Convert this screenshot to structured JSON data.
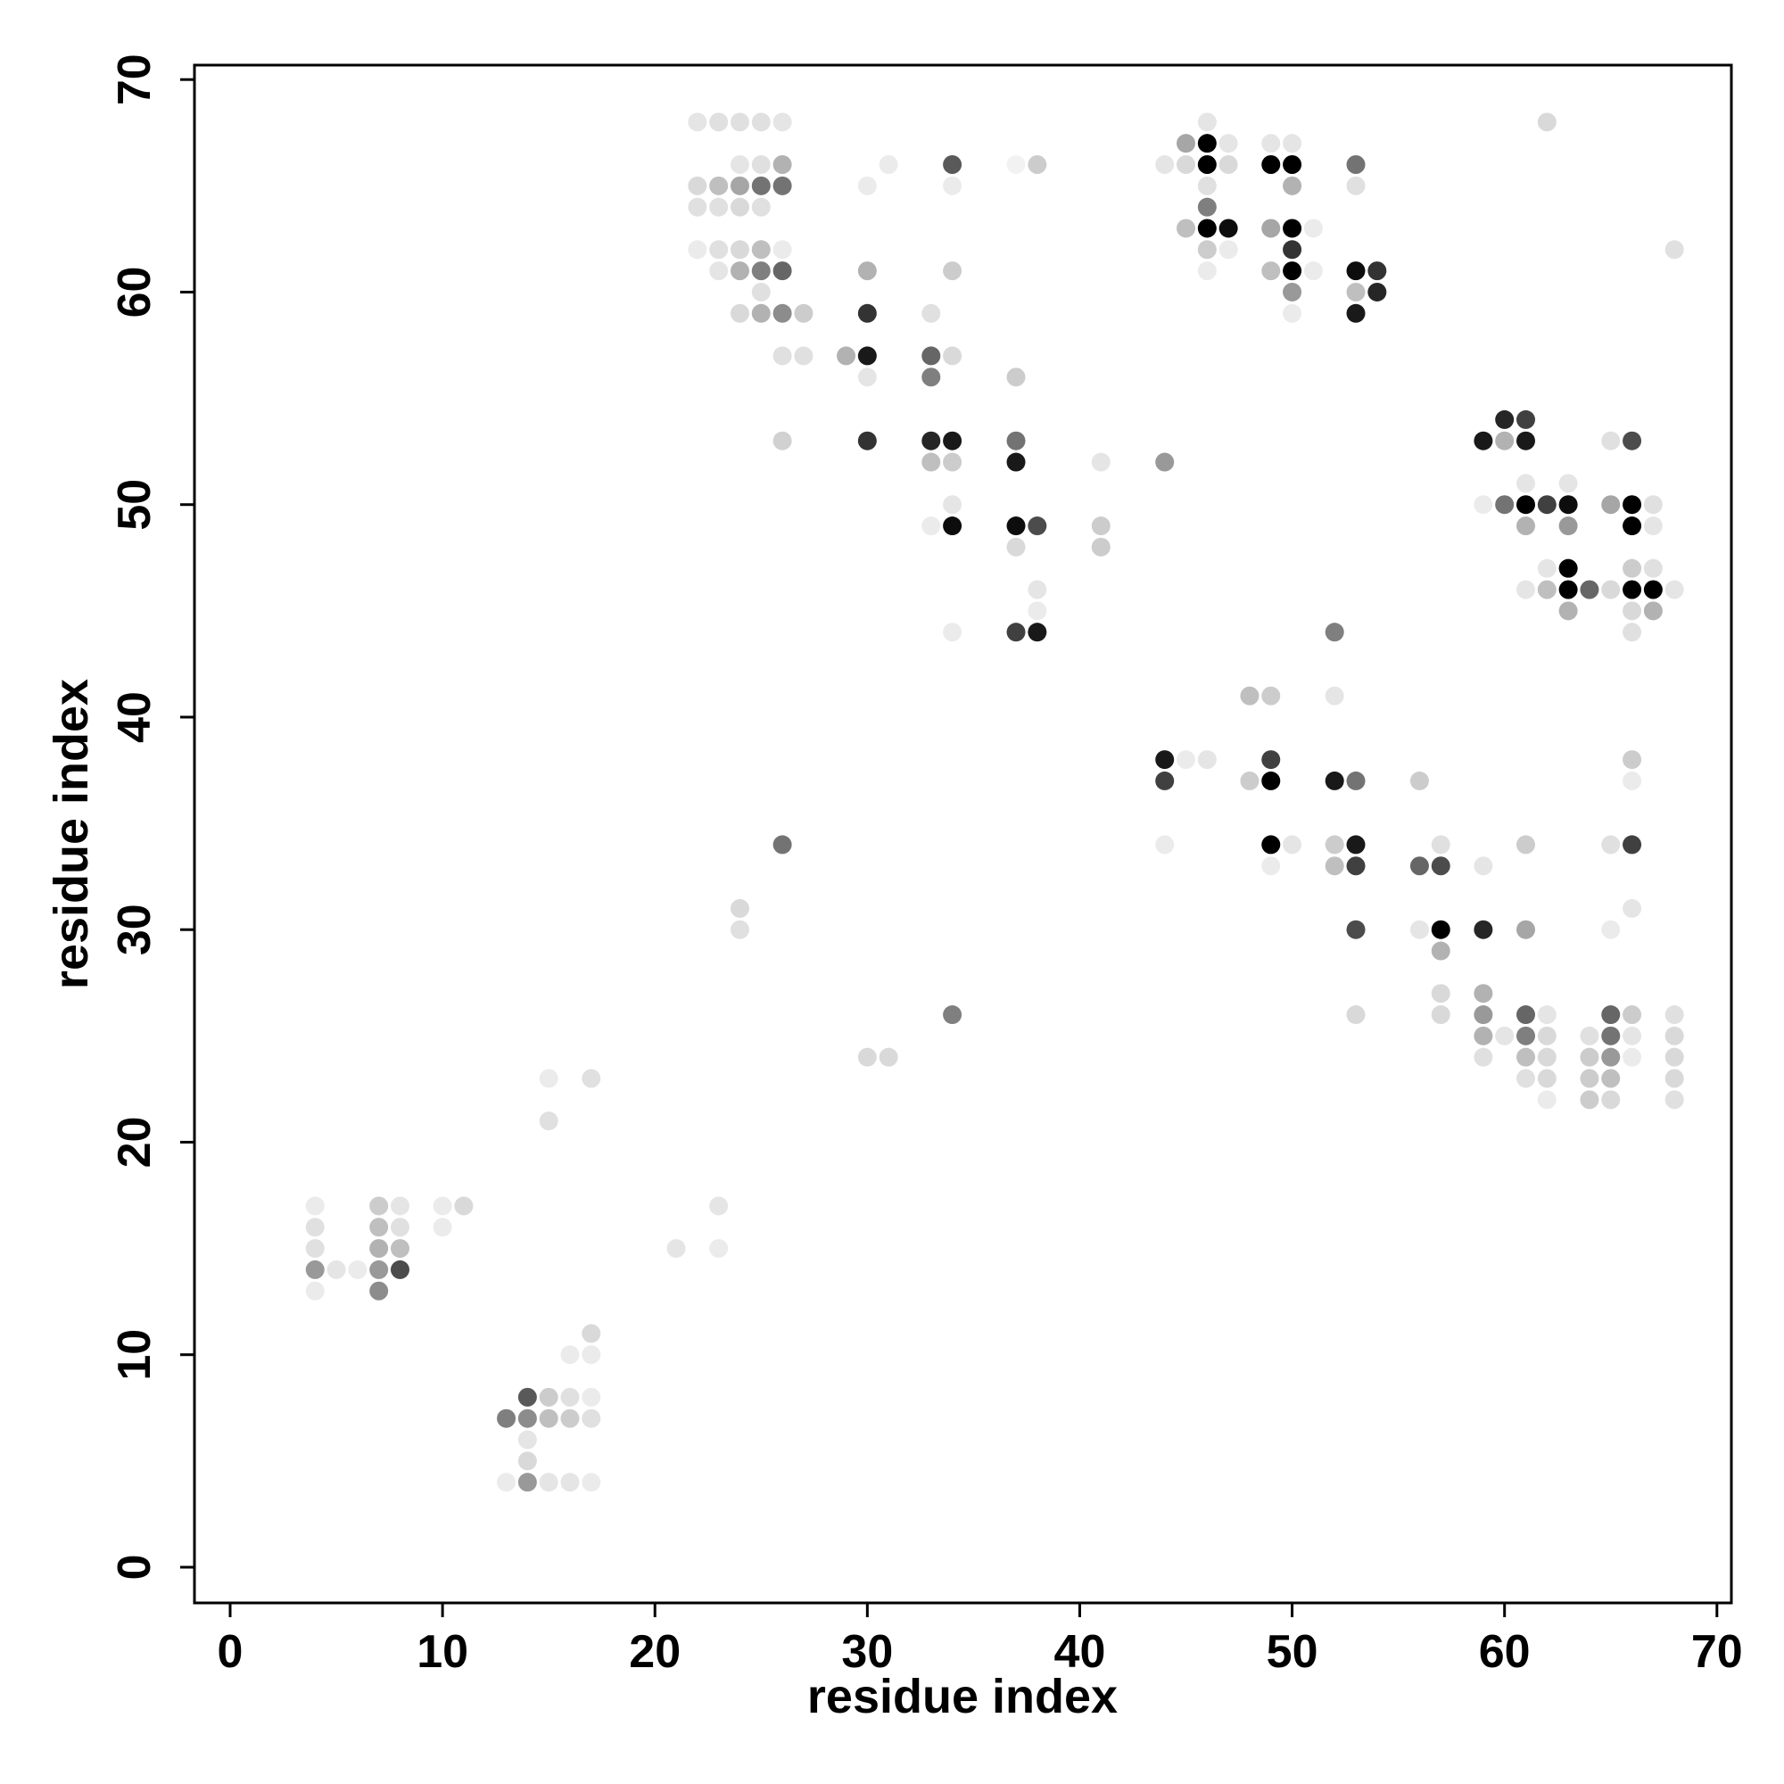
{
  "chart_data": {
    "type": "scatter",
    "x_label": "residue index",
    "y_label": "residue index",
    "xlim": [
      -1.68,
      70.68
    ],
    "ylim": [
      -1.68,
      70.68
    ],
    "xticks": [
      0,
      10,
      20,
      30,
      40,
      50,
      60,
      70
    ],
    "yticks": [
      0,
      10,
      20,
      30,
      40,
      50,
      60,
      70
    ],
    "color": "#000000",
    "x": [
      4,
      4,
      4,
      4,
      4,
      5,
      6,
      7,
      7,
      7,
      7,
      7,
      8,
      8,
      8,
      8,
      10,
      10,
      11,
      13,
      13,
      14,
      14,
      14,
      14,
      14,
      15,
      15,
      15,
      15,
      15,
      16,
      16,
      16,
      16,
      17,
      17,
      17,
      17,
      17,
      17,
      21,
      22,
      22,
      22,
      22,
      23,
      23,
      23,
      23,
      23,
      23,
      23,
      24,
      24,
      24,
      24,
      24,
      24,
      24,
      24,
      24,
      25,
      25,
      25,
      25,
      25,
      25,
      25,
      25,
      26,
      26,
      26,
      26,
      26,
      26,
      26,
      26,
      26,
      27,
      27,
      29,
      30,
      30,
      30,
      30,
      30,
      30,
      30,
      31,
      31,
      33,
      33,
      33,
      33,
      33,
      33,
      34,
      34,
      34,
      34,
      34,
      34,
      34,
      34,
      34,
      34,
      37,
      37,
      37,
      37,
      37,
      37,
      37,
      38,
      38,
      38,
      38,
      38,
      41,
      41,
      41,
      44,
      44,
      44,
      44,
      44,
      45,
      45,
      45,
      45,
      46,
      46,
      46,
      46,
      46,
      46,
      46,
      46,
      46,
      47,
      47,
      47,
      47,
      48,
      48,
      49,
      49,
      49,
      49,
      49,
      49,
      49,
      49,
      49,
      50,
      50,
      50,
      50,
      50,
      50,
      50,
      50,
      50,
      51,
      51,
      52,
      52,
      52,
      52,
      52,
      53,
      53,
      53,
      53,
      53,
      53,
      53,
      53,
      53,
      53,
      54,
      54,
      56,
      56,
      56,
      57,
      57,
      57,
      57,
      57,
      57,
      59,
      59,
      59,
      59,
      59,
      59,
      59,
      59,
      60,
      60,
      60,
      60,
      61,
      61,
      61,
      61,
      61,
      61,
      61,
      61,
      61,
      61,
      61,
      61,
      62,
      62,
      62,
      62,
      62,
      62,
      62,
      62,
      62,
      63,
      63,
      63,
      63,
      63,
      63,
      64,
      64,
      64,
      64,
      64,
      65,
      65,
      65,
      65,
      65,
      65,
      65,
      65,
      65,
      65,
      66,
      66,
      66,
      66,
      66,
      66,
      66,
      66,
      66,
      66,
      66,
      66,
      66,
      66,
      67,
      67,
      67,
      67,
      67,
      68,
      68,
      68,
      68,
      68,
      68,
      68
    ],
    "values": [
      17,
      16,
      15,
      14,
      13,
      14,
      14,
      17,
      16,
      15,
      14,
      13,
      17,
      16,
      15,
      14,
      17,
      16,
      17,
      7,
      4,
      8,
      7,
      6,
      5,
      4,
      23,
      21,
      8,
      7,
      4,
      10,
      8,
      7,
      4,
      23,
      11,
      10,
      8,
      7,
      4,
      15,
      68,
      65,
      64,
      62,
      68,
      65,
      64,
      62,
      61,
      17,
      15,
      68,
      66,
      65,
      64,
      62,
      61,
      59,
      31,
      30,
      68,
      66,
      65,
      64,
      62,
      61,
      60,
      59,
      68,
      66,
      65,
      62,
      61,
      59,
      57,
      53,
      34,
      59,
      57,
      57,
      65,
      61,
      59,
      57,
      56,
      53,
      24,
      66,
      24,
      59,
      57,
      56,
      53,
      52,
      49,
      66,
      65,
      61,
      57,
      53,
      52,
      50,
      49,
      44,
      26,
      66,
      56,
      53,
      52,
      49,
      48,
      44,
      66,
      49,
      46,
      45,
      44,
      52,
      49,
      48,
      66,
      52,
      38,
      37,
      34,
      67,
      66,
      63,
      38,
      68,
      67,
      66,
      65,
      64,
      63,
      62,
      61,
      38,
      67,
      66,
      63,
      62,
      41,
      37,
      67,
      66,
      63,
      61,
      41,
      38,
      37,
      34,
      33,
      67,
      66,
      65,
      63,
      62,
      61,
      60,
      59,
      34,
      63,
      61,
      44,
      41,
      37,
      34,
      33,
      66,
      65,
      61,
      60,
      59,
      37,
      34,
      33,
      30,
      26,
      61,
      60,
      37,
      33,
      30,
      34,
      33,
      30,
      29,
      27,
      26,
      53,
      50,
      33,
      30,
      27,
      26,
      25,
      24,
      54,
      53,
      50,
      25,
      54,
      53,
      51,
      50,
      49,
      46,
      34,
      30,
      26,
      25,
      24,
      23,
      68,
      50,
      47,
      46,
      26,
      25,
      24,
      23,
      22,
      51,
      50,
      49,
      47,
      46,
      45,
      46,
      25,
      24,
      23,
      22,
      53,
      50,
      46,
      34,
      30,
      26,
      25,
      24,
      23,
      22,
      53,
      50,
      49,
      47,
      46,
      45,
      44,
      38,
      37,
      34,
      31,
      26,
      25,
      24,
      50,
      49,
      47,
      46,
      45,
      62,
      46,
      26,
      25,
      24,
      23,
      22
    ],
    "shade": [
      0.08,
      0.12,
      0.12,
      0.4,
      0.08,
      0.1,
      0.08,
      0.2,
      0.25,
      0.3,
      0.4,
      0.45,
      0.1,
      0.12,
      0.25,
      0.7,
      0.08,
      0.08,
      0.15,
      0.5,
      0.08,
      0.65,
      0.45,
      0.1,
      0.15,
      0.4,
      0.08,
      0.12,
      0.2,
      0.25,
      0.1,
      0.08,
      0.12,
      0.2,
      0.1,
      0.12,
      0.15,
      0.08,
      0.08,
      0.12,
      0.08,
      0.1,
      0.1,
      0.15,
      0.12,
      0.08,
      0.12,
      0.25,
      0.12,
      0.12,
      0.1,
      0.1,
      0.08,
      0.12,
      0.1,
      0.35,
      0.15,
      0.15,
      0.3,
      0.15,
      0.15,
      0.12,
      0.12,
      0.12,
      0.55,
      0.12,
      0.25,
      0.5,
      0.12,
      0.3,
      0.1,
      0.3,
      0.55,
      0.08,
      0.6,
      0.45,
      0.12,
      0.18,
      0.55,
      0.2,
      0.12,
      0.3,
      0.08,
      0.3,
      0.8,
      0.9,
      0.1,
      0.8,
      0.15,
      0.08,
      0.15,
      0.12,
      0.6,
      0.5,
      0.85,
      0.25,
      0.08,
      0.65,
      0.08,
      0.2,
      0.15,
      0.9,
      0.2,
      0.1,
      0.95,
      0.08,
      0.5,
      0.05,
      0.2,
      0.55,
      0.9,
      0.95,
      0.15,
      0.75,
      0.2,
      0.7,
      0.1,
      0.08,
      0.9,
      0.1,
      0.2,
      0.2,
      0.1,
      0.4,
      0.9,
      0.75,
      0.08,
      0.35,
      0.15,
      0.25,
      0.08,
      0.1,
      1,
      1,
      0.12,
      0.5,
      1,
      0.2,
      0.08,
      0.1,
      0.1,
      0.15,
      0.95,
      0.08,
      0.25,
      0.2,
      0.1,
      1,
      0.35,
      0.25,
      0.2,
      0.75,
      1,
      1,
      0.08,
      0.1,
      1,
      0.3,
      1,
      0.8,
      1,
      0.4,
      0.08,
      0.1,
      0.08,
      0.08,
      0.5,
      0.1,
      0.9,
      0.2,
      0.25,
      0.55,
      0.12,
      0.95,
      0.25,
      0.9,
      0.55,
      0.9,
      0.75,
      0.7,
      0.15,
      0.8,
      0.85,
      0.2,
      0.6,
      0.1,
      0.12,
      0.7,
      1,
      0.3,
      0.15,
      0.15,
      0.9,
      0.08,
      0.1,
      0.85,
      0.3,
      0.4,
      0.3,
      0.12,
      0.85,
      0.3,
      0.55,
      0.1,
      0.75,
      0.9,
      0.1,
      1,
      0.3,
      0.1,
      0.2,
      0.35,
      0.6,
      0.5,
      0.25,
      0.12,
      0.15,
      0.75,
      0.1,
      0.25,
      0.1,
      0.15,
      0.15,
      0.15,
      0.08,
      0.1,
      0.95,
      0.4,
      1,
      1,
      0.3,
      0.6,
      0.12,
      0.2,
      0.2,
      0.2,
      0.12,
      0.35,
      0.15,
      0.12,
      0.08,
      0.6,
      0.55,
      0.4,
      0.25,
      0.15,
      0.7,
      1,
      1,
      0.2,
      1,
      0.15,
      0.12,
      0.2,
      0.08,
      0.75,
      0.1,
      0.2,
      0.1,
      0.08,
      0.12,
      0.1,
      0.12,
      1,
      0.3,
      0.12,
      0.1,
      0.12,
      0.15,
      0.15,
      0.15,
      0.12
    ]
  }
}
